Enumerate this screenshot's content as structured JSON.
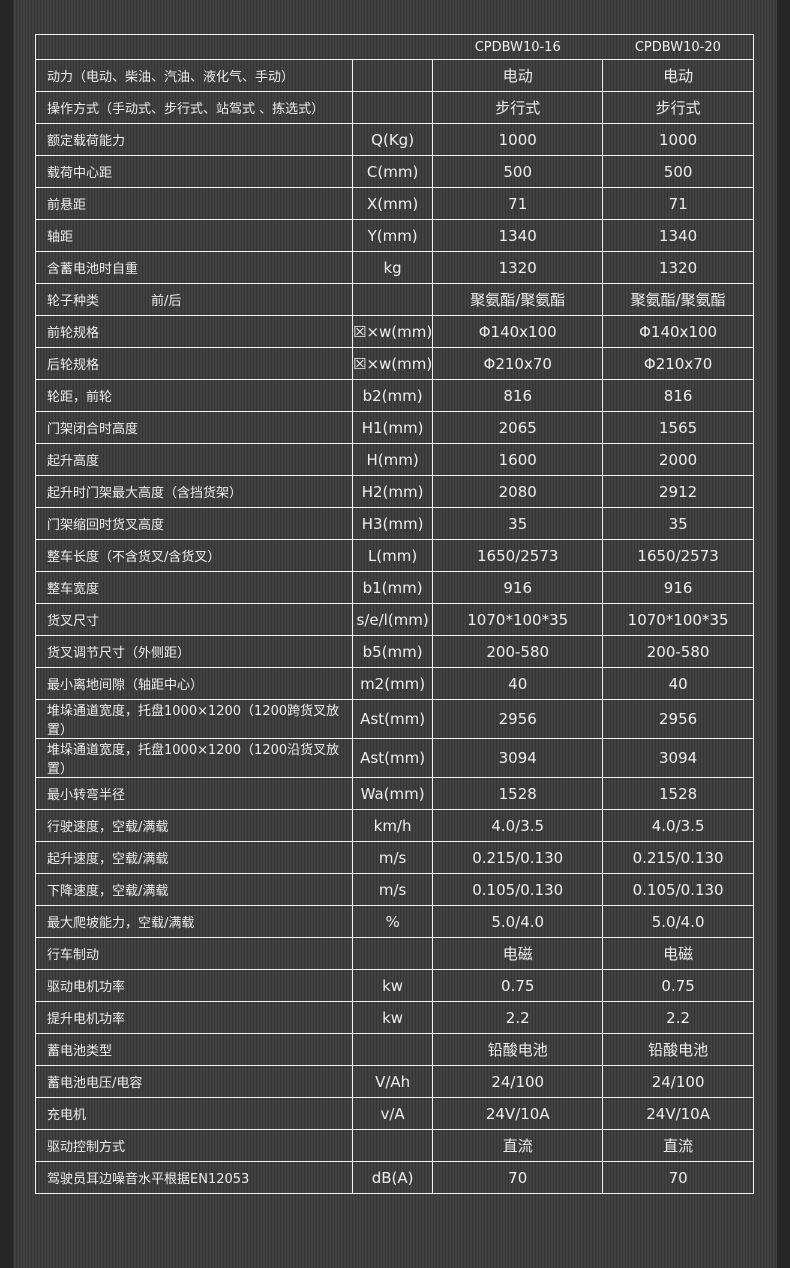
{
  "models": [
    "CPDBW10-16",
    "CPDBW10-20"
  ],
  "rows": [
    {
      "label": "动力（电动、柴油、汽油、液化气、手动）",
      "unit": "",
      "v1": "电动",
      "v2": "电动"
    },
    {
      "label": "操作方式（手动式、步行式、站驾式 、拣选式）",
      "unit": "",
      "v1": "步行式",
      "v2": "步行式"
    },
    {
      "label": "额定载荷能力",
      "unit": "Q(Kg)",
      "v1": "1000",
      "v2": "1000"
    },
    {
      "label": "载荷中心距",
      "unit": "C(mm)",
      "v1": "500",
      "v2": "500"
    },
    {
      "label": "前悬距",
      "unit": "X(mm)",
      "v1": "71",
      "v2": "71"
    },
    {
      "label": "轴距",
      "unit": "Y(mm)",
      "v1": "1340",
      "v2": "1340"
    },
    {
      "label": "含蓄电池时自重",
      "unit": "kg",
      "v1": "1320",
      "v2": "1320"
    },
    {
      "label": "轮子种类",
      "sub": "前/后",
      "unit": "",
      "v1": "聚氨酯/聚氨酯",
      "v2": "聚氨酯/聚氨酯"
    },
    {
      "label": "前轮规格",
      "unit": "☒×w(mm)",
      "v1": "Φ140x100",
      "v2": "Φ140x100"
    },
    {
      "label": "后轮规格",
      "unit": "☒×w(mm)",
      "v1": "Φ210x70",
      "v2": "Φ210x70"
    },
    {
      "label": "轮距，前轮",
      "unit": "b2(mm)",
      "v1": "816",
      "v2": "816"
    },
    {
      "label": "门架闭合时高度",
      "unit": "H1(mm)",
      "v1": "2065",
      "v2": "1565"
    },
    {
      "label": "起升高度",
      "unit": "H(mm)",
      "v1": "1600",
      "v2": "2000"
    },
    {
      "label": "起升时门架最大高度（含挡货架）",
      "unit": "H2(mm)",
      "v1": "2080",
      "v2": "2912"
    },
    {
      "label": "门架缩回时货叉高度",
      "unit": "H3(mm)",
      "v1": "35",
      "v2": "35"
    },
    {
      "label": "整车长度（不含货叉/含货叉）",
      "unit": "L(mm)",
      "v1": "1650/2573",
      "v2": "1650/2573"
    },
    {
      "label": "整车宽度",
      "unit": "b1(mm)",
      "v1": "916",
      "v2": "916"
    },
    {
      "label": "货叉尺寸",
      "unit": "s/e/l(mm)",
      "v1": "1070*100*35",
      "v2": "1070*100*35"
    },
    {
      "label": "货叉调节尺寸（外侧距）",
      "unit": "b5(mm)",
      "v1": "200-580",
      "v2": "200-580"
    },
    {
      "label": "最小离地间隙（轴距中心）",
      "unit": "m2(mm)",
      "v1": "40",
      "v2": "40"
    },
    {
      "label": "堆垛通道宽度，托盘1000×1200（1200跨货叉放置）",
      "unit": "Ast(mm)",
      "v1": "2956",
      "v2": "2956"
    },
    {
      "label": "堆垛通道宽度，托盘1000×1200（1200沿货叉放置）",
      "unit": "Ast(mm)",
      "v1": "3094",
      "v2": "3094"
    },
    {
      "label": "最小转弯半径",
      "unit": "Wa(mm)",
      "v1": "1528",
      "v2": "1528"
    },
    {
      "label": "行驶速度，空载/满载",
      "unit": "km/h",
      "v1": "4.0/3.5",
      "v2": "4.0/3.5"
    },
    {
      "label": "起升速度，空载/满载",
      "unit": "m/s",
      "v1": "0.215/0.130",
      "v2": "0.215/0.130"
    },
    {
      "label": "下降速度，空载/满载",
      "unit": "m/s",
      "v1": "0.105/0.130",
      "v2": "0.105/0.130"
    },
    {
      "label": "最大爬坡能力，空载/满载",
      "unit": "%",
      "v1": "5.0/4.0",
      "v2": "5.0/4.0"
    },
    {
      "label": "行车制动",
      "unit": "",
      "v1": "电磁",
      "v2": "电磁"
    },
    {
      "label": "驱动电机功率",
      "unit": "kw",
      "v1": "0.75",
      "v2": "0.75"
    },
    {
      "label": "提升电机功率",
      "unit": "kw",
      "v1": "2.2",
      "v2": "2.2"
    },
    {
      "label": "蓄电池类型",
      "unit": "",
      "v1": "铅酸电池",
      "v2": "铅酸电池"
    },
    {
      "label": "蓄电池电压/电容",
      "unit": "V/Ah",
      "v1": "24/100",
      "v2": "24/100"
    },
    {
      "label": "充电机",
      "unit": "v/A",
      "v1": "24V/10A",
      "v2": "24V/10A"
    },
    {
      "label": "驱动控制方式",
      "unit": "",
      "v1": "直流",
      "v2": "直流"
    },
    {
      "label": "驾驶员耳边噪音水平根据EN12053",
      "unit": "dB(A)",
      "v1": "70",
      "v2": "70"
    }
  ]
}
